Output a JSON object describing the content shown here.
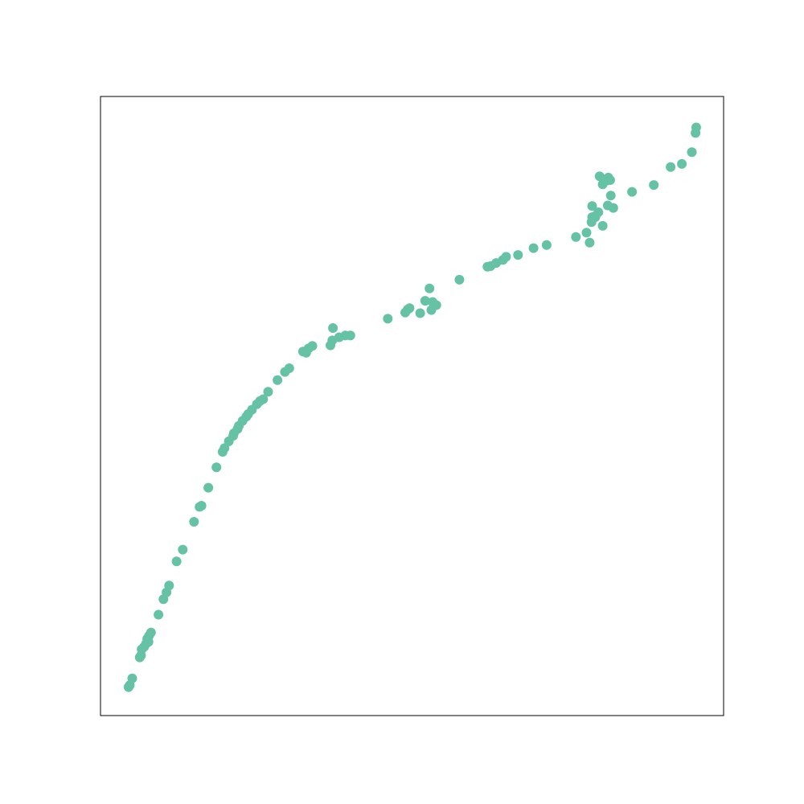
{
  "chart_data": {
    "type": "scatter",
    "title": "",
    "xlabel": "",
    "ylabel": "",
    "xlim": [
      0,
      100
    ],
    "ylim": [
      0,
      100
    ],
    "grid": false,
    "legend": "none",
    "axis_ticks": "hidden",
    "marker_color": "#66c2a5",
    "frame_color": "#000000",
    "x": [
      4.5,
      4.7,
      5.1,
      6.3,
      6.5,
      6.6,
      7.0,
      7.3,
      7.5,
      7.7,
      7.8,
      8.1,
      9.3,
      10.1,
      10.6,
      11.0,
      12.2,
      13.2,
      15.0,
      15.9,
      16.2,
      17.3,
      18.6,
      19.6,
      19.9,
      20.6,
      21.3,
      21.4,
      22.0,
      22.2,
      22.8,
      23.4,
      23.7,
      24.3,
      25.1,
      25.6,
      26.1,
      26.9,
      28.4,
      29.6,
      30.3,
      32.5,
      33.0,
      33.4,
      34.0,
      36.9,
      37.3,
      38.3,
      37.2,
      39.3,
      40.1,
      46.1,
      48.9,
      49.3,
      49.6,
      51.3,
      52.1,
      52.8,
      53.1,
      53.3,
      53.9,
      57.6,
      62.1,
      62.6,
      63.5,
      64.6,
      65.1,
      67.0,
      69.5,
      71.6,
      76.3,
      78.0,
      78.5,
      78.8,
      78.9,
      79.4,
      79.9,
      80.1,
      80.6,
      81.2,
      81.5,
      81.8,
      81.9,
      82.3,
      81.4,
      80.6,
      79.2,
      78.9,
      85.3,
      88.8,
      91.5,
      93.3,
      94.9,
      95.5,
      95.6
    ],
    "y": [
      4.6,
      4.9,
      6.0,
      9.4,
      9.7,
      10.7,
      11.1,
      11.6,
      12.4,
      11.9,
      12.9,
      13.4,
      16.3,
      18.8,
      19.9,
      21.0,
      24.9,
      26.8,
      31.3,
      33.7,
      33.9,
      36.8,
      40.1,
      42.6,
      43.2,
      44.3,
      45.2,
      45.6,
      46.3,
      46.8,
      47.6,
      48.3,
      48.7,
      49.4,
      50.3,
      50.8,
      51.1,
      52.3,
      54.2,
      55.5,
      56.1,
      58.8,
      58.6,
      59.3,
      59.7,
      59.8,
      62.6,
      61.1,
      60.6,
      61.4,
      61.4,
      64.1,
      65.1,
      65.6,
      65.8,
      65.0,
      67.0,
      69.0,
      65.5,
      66.8,
      66.3,
      70.4,
      72.5,
      72.6,
      73.1,
      73.6,
      74.1,
      74.4,
      75.5,
      76.0,
      77.3,
      78.0,
      76.4,
      79.7,
      80.5,
      80.5,
      81.3,
      87.1,
      85.8,
      86.4,
      86.9,
      86.5,
      84.0,
      82.0,
      82.4,
      79.1,
      80.6,
      82.3,
      84.6,
      85.7,
      88.6,
      89.1,
      91.0,
      94.1,
      95.0
    ]
  }
}
